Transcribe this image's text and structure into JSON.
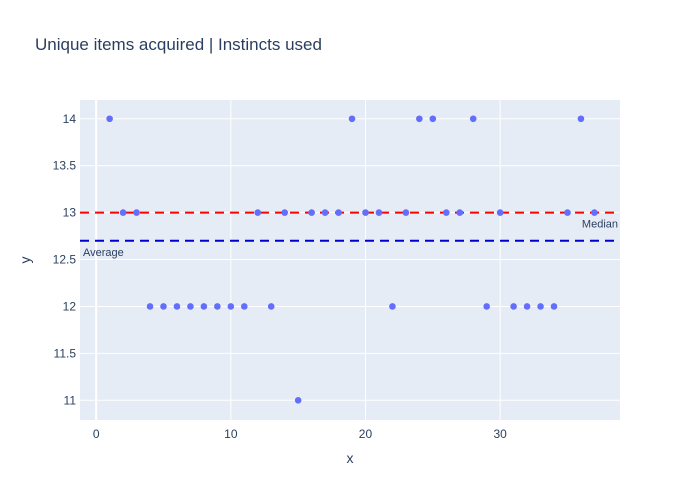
{
  "chart_data": {
    "type": "scatter",
    "title": "Unique items acquired | Instincts used",
    "xlabel": "x",
    "ylabel": "y",
    "xlim": [
      -1.2,
      38.9
    ],
    "ylim": [
      10.79,
      14.2
    ],
    "xticks": [
      0,
      10,
      20,
      30
    ],
    "yticks": [
      11,
      11.5,
      12,
      12.5,
      13,
      13.5,
      14
    ],
    "ytick_labels": [
      "11",
      "11.5",
      "12",
      "12.5",
      "13",
      "13.5",
      "14"
    ],
    "grid": true,
    "series": [
      {
        "name": "points",
        "color": "#636efa",
        "x": [
          1,
          2,
          3,
          4,
          5,
          6,
          7,
          8,
          9,
          10,
          11,
          12,
          13,
          14,
          15,
          16,
          17,
          18,
          19,
          20,
          21,
          22,
          23,
          24,
          25,
          26,
          27,
          28,
          29,
          30,
          31,
          32,
          33,
          34,
          35,
          36,
          37
        ],
        "y": [
          14,
          13,
          13,
          12,
          12,
          12,
          12,
          12,
          12,
          12,
          12,
          13,
          12,
          13,
          11,
          13,
          13,
          13,
          14,
          13,
          13,
          12,
          13,
          14,
          14,
          13,
          13,
          14,
          12,
          13,
          12,
          12,
          12,
          12,
          13,
          14,
          13
        ]
      }
    ],
    "lines": [
      {
        "name": "Median",
        "y": 13,
        "color": "#ff0000",
        "label": "Median",
        "label_position": "right-below"
      },
      {
        "name": "Average",
        "y": 12.7,
        "color": "#0000cc",
        "label": "Average",
        "label_position": "left-below"
      }
    ]
  }
}
